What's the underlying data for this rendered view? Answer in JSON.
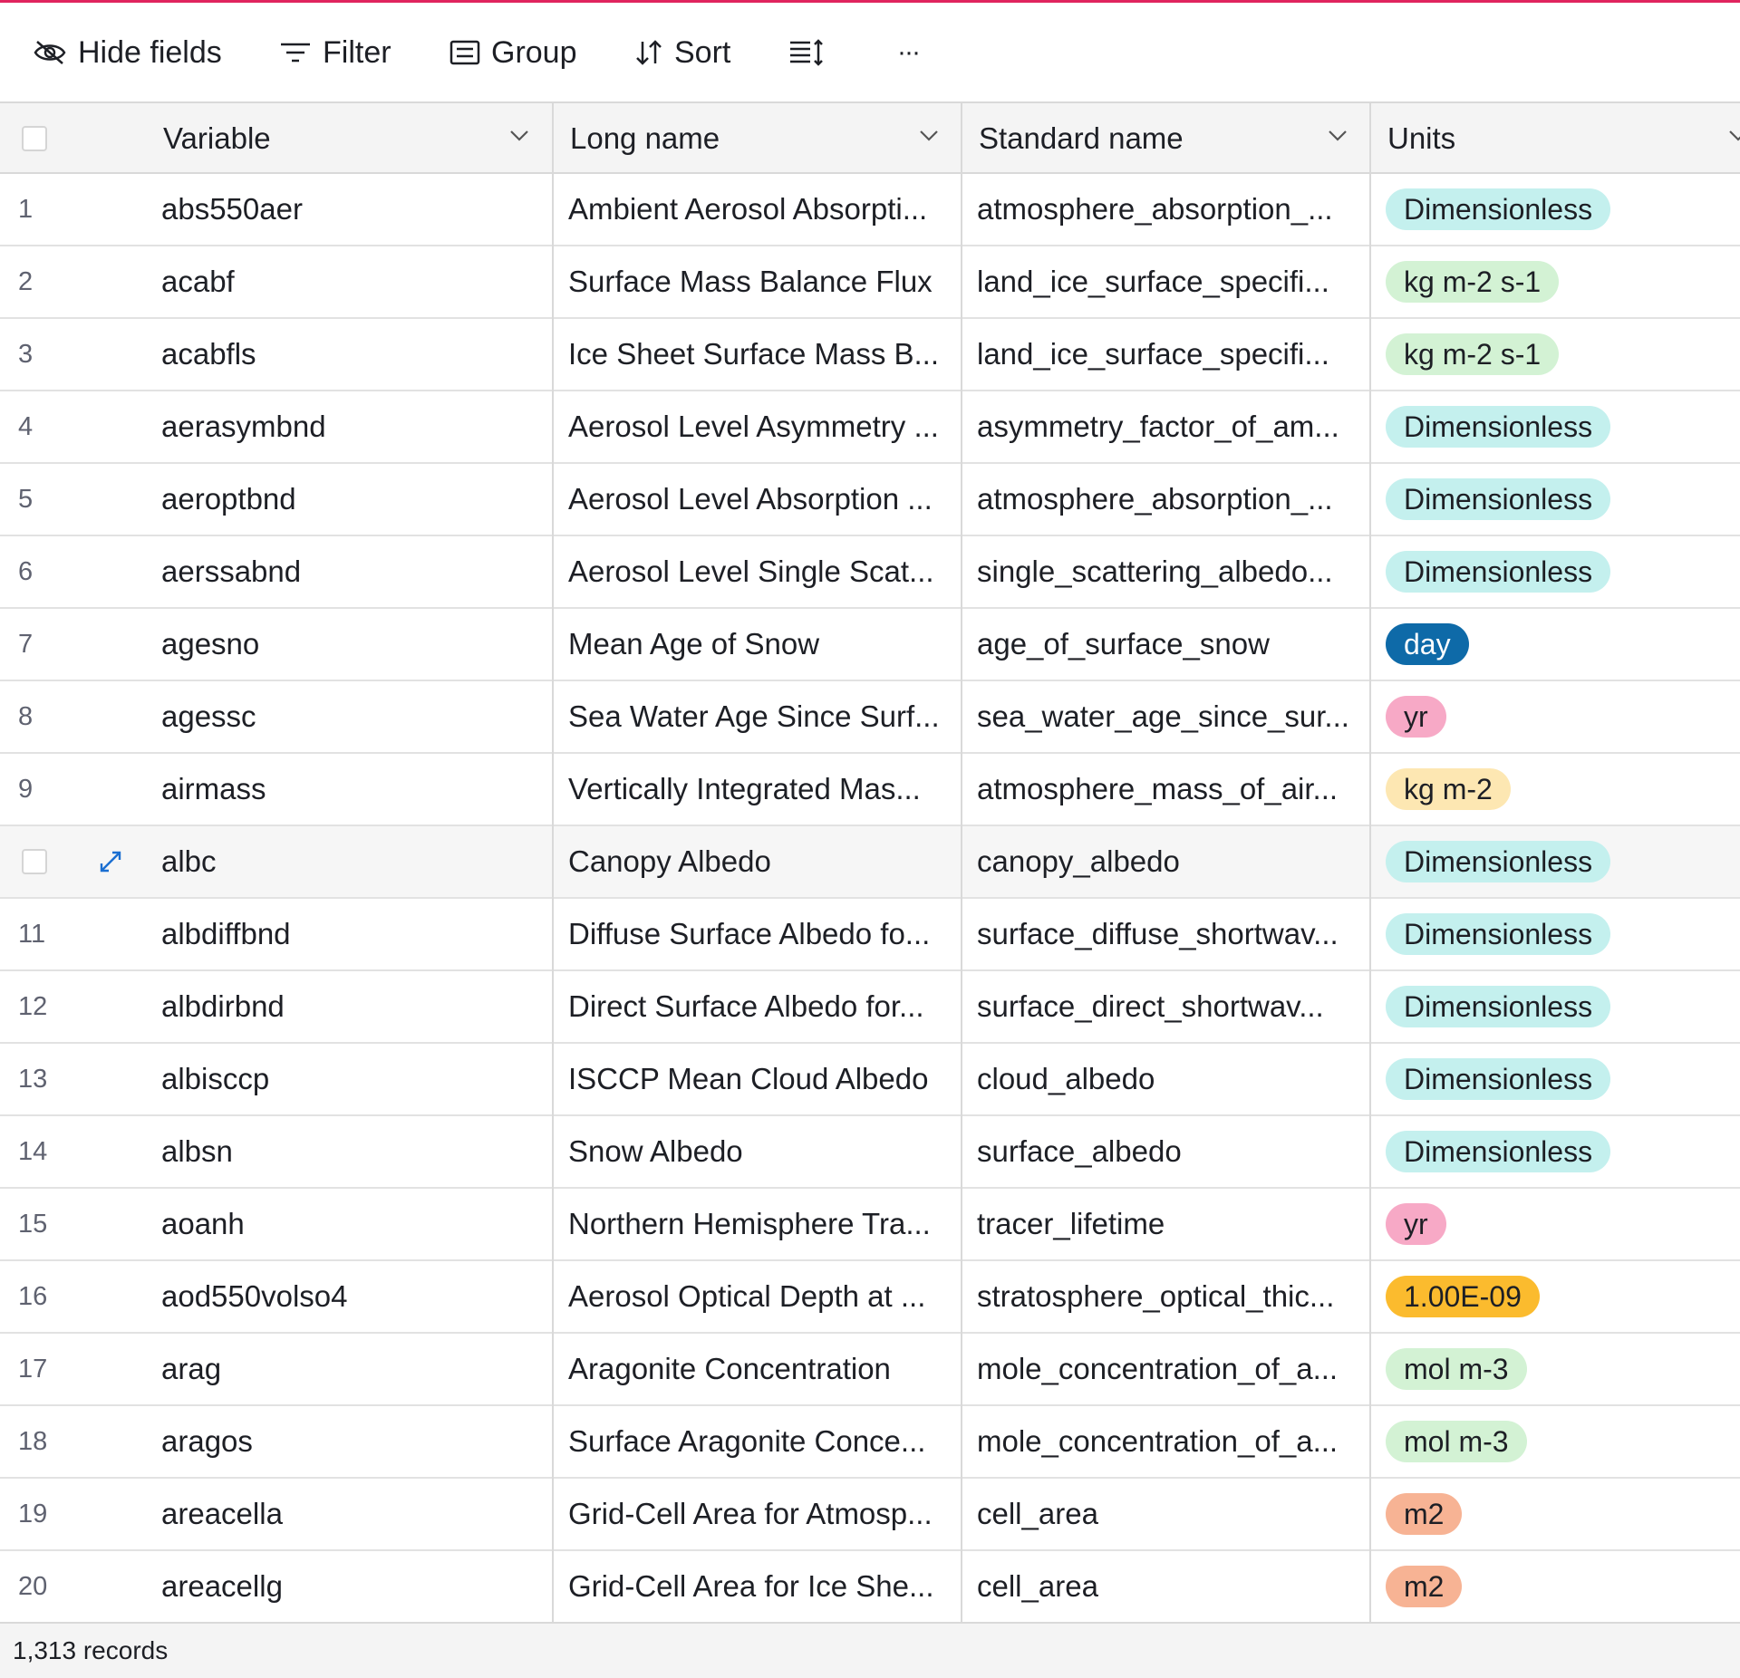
{
  "toolbar": {
    "hide_fields": "Hide fields",
    "filter": "Filter",
    "group": "Group",
    "sort": "Sort",
    "more": "···"
  },
  "columns": {
    "variable": "Variable",
    "long_name": "Long name",
    "standard_name": "Standard name",
    "units": "Units"
  },
  "colors": {
    "accent": "#e0245e",
    "dimensionless": "#c4f0ee",
    "kg_m2_s1": "#d3f2d4",
    "day": "#0e6aa8",
    "yr": "#f7a9c6",
    "kg_m2": "#fde7b2",
    "e09": "#fbbb2e",
    "mol_m3": "#d3f2d4",
    "m2": "#f7b394"
  },
  "rows": [
    {
      "num": "1",
      "variable": "abs550aer",
      "long_name": "Ambient Aerosol Absorpti...",
      "standard_name": "atmosphere_absorption_...",
      "units": "Dimensionless",
      "color": "#c4f0ee",
      "text_color": "#1d1f25"
    },
    {
      "num": "2",
      "variable": "acabf",
      "long_name": "Surface Mass Balance Flux",
      "standard_name": "land_ice_surface_specifi...",
      "units": "kg m-2 s-1",
      "color": "#d3f2d4",
      "text_color": "#1d1f25"
    },
    {
      "num": "3",
      "variable": "acabfls",
      "long_name": "Ice Sheet Surface Mass B...",
      "standard_name": "land_ice_surface_specifi...",
      "units": "kg m-2 s-1",
      "color": "#d3f2d4",
      "text_color": "#1d1f25"
    },
    {
      "num": "4",
      "variable": "aerasymbnd",
      "long_name": "Aerosol Level Asymmetry ...",
      "standard_name": "asymmetry_factor_of_am...",
      "units": "Dimensionless",
      "color": "#c4f0ee",
      "text_color": "#1d1f25"
    },
    {
      "num": "5",
      "variable": "aeroptbnd",
      "long_name": "Aerosol Level Absorption ...",
      "standard_name": "atmosphere_absorption_...",
      "units": "Dimensionless",
      "color": "#c4f0ee",
      "text_color": "#1d1f25"
    },
    {
      "num": "6",
      "variable": "aerssabnd",
      "long_name": "Aerosol Level Single Scat...",
      "standard_name": "single_scattering_albedo...",
      "units": "Dimensionless",
      "color": "#c4f0ee",
      "text_color": "#1d1f25"
    },
    {
      "num": "7",
      "variable": "agesno",
      "long_name": "Mean Age of Snow",
      "standard_name": "age_of_surface_snow",
      "units": "day",
      "color": "#0e6aa8",
      "text_color": "#ffffff"
    },
    {
      "num": "8",
      "variable": "agessc",
      "long_name": "Sea Water Age Since Surf...",
      "standard_name": "sea_water_age_since_sur...",
      "units": "yr",
      "color": "#f7a9c6",
      "text_color": "#1d1f25"
    },
    {
      "num": "9",
      "variable": "airmass",
      "long_name": "Vertically Integrated Mas...",
      "standard_name": "atmosphere_mass_of_air...",
      "units": "kg m-2",
      "color": "#fde7b2",
      "text_color": "#1d1f25"
    },
    {
      "num": "",
      "variable": "albc",
      "long_name": "Canopy Albedo",
      "standard_name": "canopy_albedo",
      "units": "Dimensionless",
      "color": "#c4f0ee",
      "text_color": "#1d1f25",
      "hover": true
    },
    {
      "num": "11",
      "variable": "albdiffbnd",
      "long_name": "Diffuse Surface Albedo fo...",
      "standard_name": "surface_diffuse_shortwav...",
      "units": "Dimensionless",
      "color": "#c4f0ee",
      "text_color": "#1d1f25"
    },
    {
      "num": "12",
      "variable": "albdirbnd",
      "long_name": "Direct Surface Albedo for...",
      "standard_name": "surface_direct_shortwav...",
      "units": "Dimensionless",
      "color": "#c4f0ee",
      "text_color": "#1d1f25"
    },
    {
      "num": "13",
      "variable": "albisccp",
      "long_name": "ISCCP Mean Cloud Albedo",
      "standard_name": "cloud_albedo",
      "units": "Dimensionless",
      "color": "#c4f0ee",
      "text_color": "#1d1f25"
    },
    {
      "num": "14",
      "variable": "albsn",
      "long_name": "Snow Albedo",
      "standard_name": "surface_albedo",
      "units": "Dimensionless",
      "color": "#c4f0ee",
      "text_color": "#1d1f25"
    },
    {
      "num": "15",
      "variable": "aoanh",
      "long_name": "Northern Hemisphere Tra...",
      "standard_name": "tracer_lifetime",
      "units": "yr",
      "color": "#f7a9c6",
      "text_color": "#1d1f25"
    },
    {
      "num": "16",
      "variable": "aod550volso4",
      "long_name": "Aerosol Optical Depth at ...",
      "standard_name": "stratosphere_optical_thic...",
      "units": "1.00E-09",
      "color": "#fbbb2e",
      "text_color": "#1d1f25"
    },
    {
      "num": "17",
      "variable": "arag",
      "long_name": "Aragonite Concentration",
      "standard_name": "mole_concentration_of_a...",
      "units": "mol m-3",
      "color": "#d3f2d4",
      "text_color": "#1d1f25"
    },
    {
      "num": "18",
      "variable": "aragos",
      "long_name": "Surface Aragonite Conce...",
      "standard_name": "mole_concentration_of_a...",
      "units": "mol m-3",
      "color": "#d3f2d4",
      "text_color": "#1d1f25"
    },
    {
      "num": "19",
      "variable": "areacella",
      "long_name": "Grid-Cell Area for Atmosp...",
      "standard_name": "cell_area",
      "units": "m2",
      "color": "#f7b394",
      "text_color": "#1d1f25"
    },
    {
      "num": "20",
      "variable": "areacellg",
      "long_name": "Grid-Cell Area for Ice She...",
      "standard_name": "cell_area",
      "units": "m2",
      "color": "#f7b394",
      "text_color": "#1d1f25"
    }
  ],
  "footer": {
    "record_count": "1,313 records"
  }
}
